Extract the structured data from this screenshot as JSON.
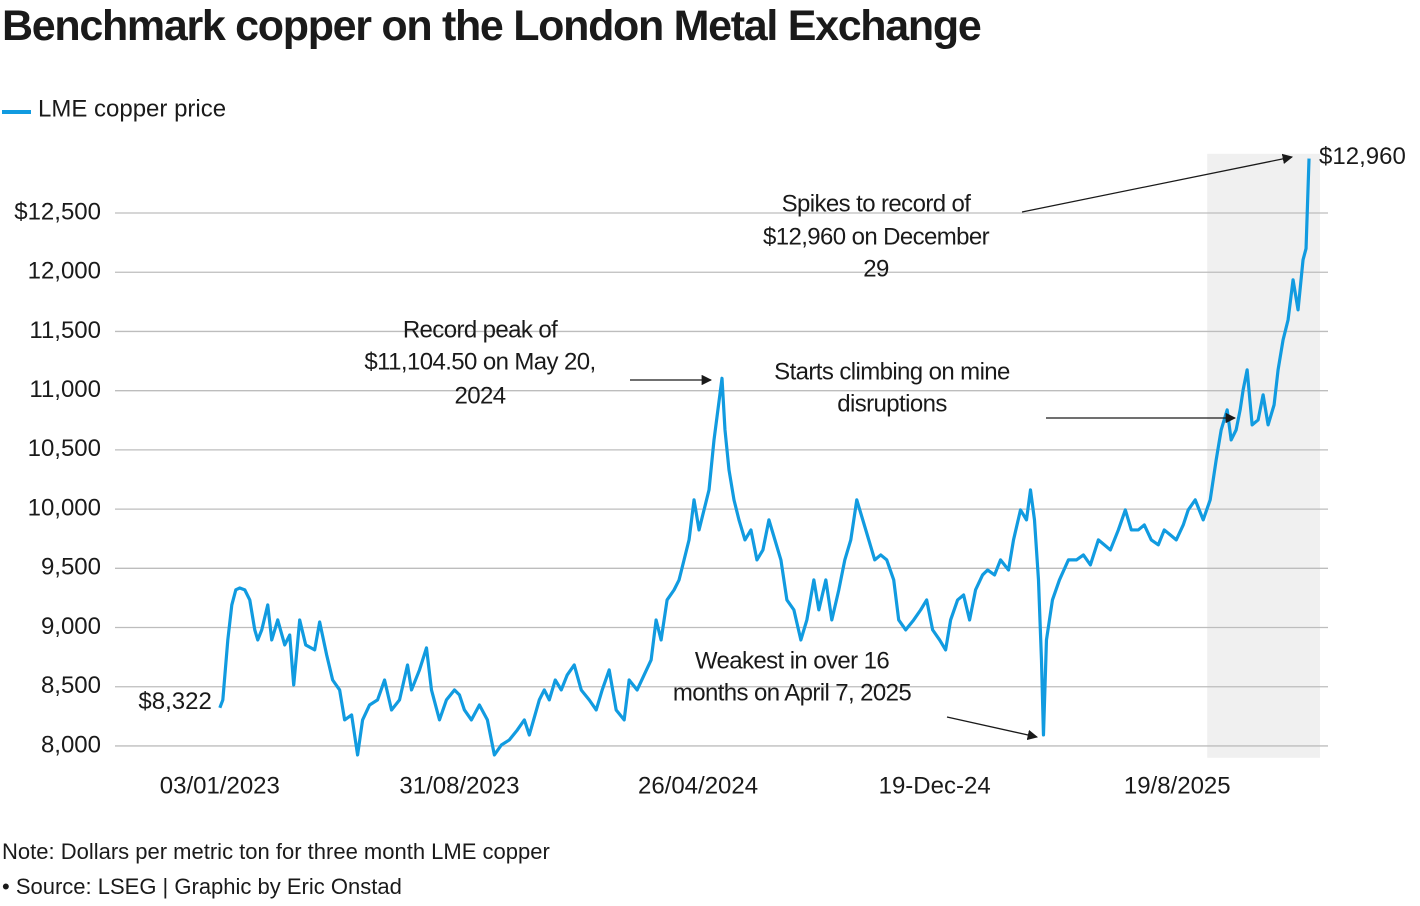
{
  "chart_data": {
    "type": "line",
    "title": "Benchmark copper on the London Metal Exchange",
    "note": "Note: Dollars per metric ton for three month LME copper",
    "source": "• Source: LSEG | Graphic by Eric Onstad",
    "x": [
      "2023-01-03",
      "2023-01-06",
      "2023-01-11",
      "2023-01-15",
      "2023-01-19",
      "2023-01-23",
      "2023-01-28",
      "2023-02-02",
      "2023-02-07",
      "2023-02-10",
      "2023-02-14",
      "2023-02-20",
      "2023-02-24",
      "2023-03-02",
      "2023-03-09",
      "2023-03-14",
      "2023-03-18",
      "2023-03-24",
      "2023-03-30",
      "2023-04-08",
      "2023-04-13",
      "2023-04-20",
      "2023-04-26",
      "2023-05-03",
      "2023-05-08",
      "2023-05-15",
      "2023-05-21",
      "2023-05-26",
      "2023-06-02",
      "2023-06-10",
      "2023-06-17",
      "2023-06-24",
      "2023-07-02",
      "2023-07-10",
      "2023-07-14",
      "2023-07-22",
      "2023-07-29",
      "2023-08-03",
      "2023-08-11",
      "2023-08-18",
      "2023-08-26",
      "2023-08-31",
      "2023-09-05",
      "2023-09-12",
      "2023-09-20",
      "2023-09-28",
      "2023-10-05",
      "2023-10-12",
      "2023-10-20",
      "2023-10-28",
      "2023-11-04",
      "2023-11-09",
      "2023-11-19",
      "2023-11-24",
      "2023-11-29",
      "2023-12-05",
      "2023-12-11",
      "2023-12-17",
      "2023-12-24",
      "2023-12-31",
      "2024-01-08",
      "2024-01-15",
      "2024-01-21",
      "2024-01-28",
      "2024-02-04",
      "2024-02-12",
      "2024-02-17",
      "2024-02-25",
      "2024-03-03",
      "2024-03-10",
      "2024-03-15",
      "2024-03-20",
      "2024-03-26",
      "2024-04-02",
      "2024-04-07",
      "2024-04-12",
      "2024-04-17",
      "2024-04-22",
      "2024-04-27",
      "2024-05-02",
      "2024-05-07",
      "2024-05-12",
      "2024-05-20",
      "2024-05-23",
      "2024-05-27",
      "2024-06-01",
      "2024-06-06",
      "2024-06-12",
      "2024-06-18",
      "2024-06-24",
      "2024-06-30",
      "2024-07-06",
      "2024-07-12",
      "2024-07-18",
      "2024-07-24",
      "2024-07-31",
      "2024-08-07",
      "2024-08-13",
      "2024-08-20",
      "2024-08-25",
      "2024-09-01",
      "2024-09-07",
      "2024-09-14",
      "2024-09-20",
      "2024-09-26",
      "2024-10-02",
      "2024-10-08",
      "2024-10-14",
      "2024-10-20",
      "2024-10-26",
      "2024-11-01",
      "2024-11-08",
      "2024-11-13",
      "2024-11-20",
      "2024-11-28",
      "2024-12-05",
      "2024-12-11",
      "2024-12-17",
      "2024-12-24",
      "2024-12-30",
      "2025-01-04",
      "2025-01-11",
      "2025-01-17",
      "2025-01-23",
      "2025-01-29",
      "2025-02-05",
      "2025-02-10",
      "2025-02-17",
      "2025-02-23",
      "2025-03-03",
      "2025-03-08",
      "2025-03-15",
      "2025-03-21",
      "2025-03-25",
      "2025-03-29",
      "2025-04-02",
      "2025-04-05",
      "2025-04-07",
      "2025-04-10",
      "2025-04-16",
      "2025-04-23",
      "2025-05-02",
      "2025-05-10",
      "2025-05-17",
      "2025-05-24",
      "2025-06-01",
      "2025-06-07",
      "2025-06-13",
      "2025-06-21",
      "2025-06-28",
      "2025-07-04",
      "2025-07-11",
      "2025-07-17",
      "2025-07-24",
      "2025-07-31",
      "2025-08-06",
      "2025-08-12",
      "2025-08-18",
      "2025-08-25",
      "2025-08-30",
      "2025-09-06",
      "2025-09-14",
      "2025-09-21",
      "2025-09-27",
      "2025-10-02",
      "2025-10-08",
      "2025-10-12",
      "2025-10-17",
      "2025-10-21",
      "2025-10-24",
      "2025-10-28",
      "2025-11-02",
      "2025-11-08",
      "2025-11-13",
      "2025-11-18",
      "2025-11-24",
      "2025-11-28",
      "2025-12-03",
      "2025-12-08",
      "2025-12-13",
      "2025-12-18",
      "2025-12-23",
      "2025-12-26",
      "2025-12-29"
    ],
    "series": [
      {
        "name": "LME copper price",
        "color": "#119be0",
        "values": [
          8322,
          8389,
          8895,
          9191,
          9318,
          9334,
          9318,
          9233,
          8980,
          8895,
          8980,
          9191,
          8895,
          9064,
          8853,
          8937,
          8515,
          9064,
          8853,
          8811,
          9047,
          8769,
          8557,
          8473,
          8220,
          8262,
          7924,
          8220,
          8346,
          8389,
          8557,
          8304,
          8389,
          8684,
          8473,
          8642,
          8828,
          8473,
          8220,
          8389,
          8473,
          8431,
          8304,
          8220,
          8346,
          8220,
          7924,
          8008,
          8051,
          8135,
          8220,
          8093,
          8389,
          8473,
          8389,
          8557,
          8473,
          8600,
          8684,
          8473,
          8389,
          8304,
          8473,
          8642,
          8304,
          8220,
          8557,
          8473,
          8600,
          8726,
          9064,
          8895,
          9233,
          9318,
          9402,
          9571,
          9740,
          10078,
          9824,
          9993,
          10162,
          10584,
          11104.5,
          10669,
          10331,
          10078,
          9909,
          9740,
          9824,
          9571,
          9655,
          9909,
          9740,
          9571,
          9233,
          9149,
          8895,
          9064,
          9402,
          9149,
          9402,
          9064,
          9318,
          9571,
          9740,
          10078,
          9909,
          9740,
          9571,
          9613,
          9571,
          9402,
          9064,
          8980,
          9064,
          9149,
          9233,
          8980,
          8895,
          8811,
          9064,
          9233,
          9275,
          9064,
          9318,
          9444,
          9486,
          9444,
          9571,
          9486,
          9740,
          9993,
          9909,
          10162,
          9909,
          9402,
          8726,
          8093,
          8895,
          9233,
          9402,
          9571,
          9571,
          9613,
          9529,
          9740,
          9698,
          9655,
          9824,
          9993,
          9824,
          9824,
          9866,
          9740,
          9698,
          9824,
          9782,
          9740,
          9866,
          9993,
          10078,
          9909,
          10078,
          10416,
          10669,
          10838,
          10584,
          10669,
          10838,
          11007,
          11176,
          10711,
          10753,
          10965,
          10711,
          10880,
          11176,
          11429,
          11598,
          11936,
          11682,
          12105,
          12200,
          12960
        ]
      }
    ],
    "point_labels": [
      {
        "x": "2023-01-03",
        "value": 8322,
        "label": "$8,322"
      },
      {
        "x": "2025-12-29",
        "value": 12960,
        "label": "$12,960"
      }
    ],
    "annotations": [
      {
        "lines": [
          "Record peak of",
          "$11,104.50 on May 20,",
          "2024"
        ]
      },
      {
        "lines": [
          "Spikes to record of",
          "$12,960 on December",
          "29"
        ]
      },
      {
        "lines": [
          "Starts climbing on mine",
          "disruptions"
        ]
      },
      {
        "lines": [
          "Weakest in over 16",
          "months on April 7, 2025"
        ]
      }
    ],
    "xlim": [
      "2022-09-20",
      "2026-01-17"
    ],
    "xticks": [
      {
        "value": "2023-01-03",
        "label": "03/01/2023"
      },
      {
        "value": "2023-08-31",
        "label": "31/08/2023"
      },
      {
        "value": "2024-04-26",
        "label": "26/04/2024"
      },
      {
        "value": "2024-12-19",
        "label": "19-Dec-24"
      },
      {
        "value": "2025-08-19",
        "label": "19/8/2025"
      }
    ],
    "ylim": [
      7900,
      13000
    ],
    "yticks": [
      {
        "value": 8000,
        "label": "8,000"
      },
      {
        "value": 8500,
        "label": "8,500"
      },
      {
        "value": 9000,
        "label": "9,000"
      },
      {
        "value": 9500,
        "label": "9,500"
      },
      {
        "value": 10000,
        "label": "10,000"
      },
      {
        "value": 10500,
        "label": "10,500"
      },
      {
        "value": 11000,
        "label": "11,000"
      },
      {
        "value": 11500,
        "label": "11,500"
      },
      {
        "value": 12000,
        "label": "12,000"
      },
      {
        "value": 12500,
        "label": "$12,500"
      }
    ],
    "grid": true,
    "highlight": {
      "from": "2025-09-18",
      "to": "2026-01-09",
      "color": "#f0f0f0"
    }
  }
}
